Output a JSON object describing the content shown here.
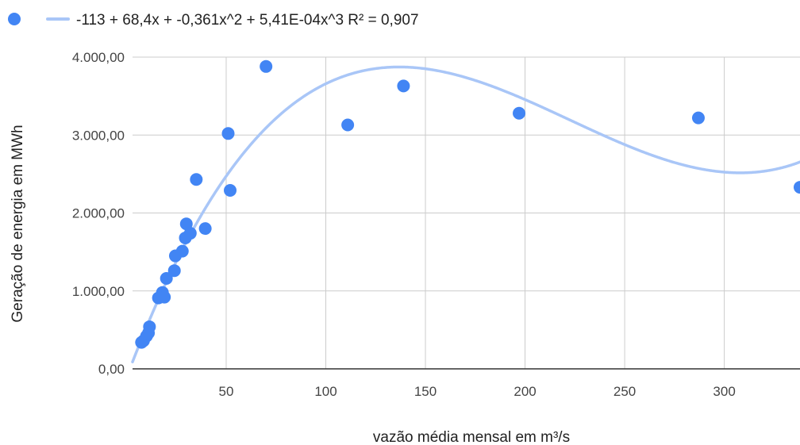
{
  "chart_data": {
    "type": "scatter",
    "title": "",
    "xlabel": "vazão média mensal em m³/s",
    "ylabel": "Geração de energia em MWh",
    "xlim": [
      3,
      338
    ],
    "ylim": [
      0,
      4000
    ],
    "x_ticks": [
      50,
      100,
      150,
      200,
      250,
      300
    ],
    "y_ticks": [
      0,
      1000,
      2000,
      3000,
      4000
    ],
    "x_tick_labels": [
      "50",
      "100",
      "150",
      "200",
      "250",
      "300"
    ],
    "y_tick_labels": [
      "0,00",
      "1.000,00",
      "2.000,00",
      "3.000,00",
      "4.000,00"
    ],
    "grid": true,
    "legend_position": "top-left",
    "series": [
      {
        "name": "",
        "points": [
          [
            7.5,
            340
          ],
          [
            8.5,
            360
          ],
          [
            10,
            420
          ],
          [
            11,
            460
          ],
          [
            11.5,
            540
          ],
          [
            16,
            910
          ],
          [
            18,
            980
          ],
          [
            19,
            920
          ],
          [
            20,
            1160
          ],
          [
            24,
            1260
          ],
          [
            24.5,
            1450
          ],
          [
            28,
            1510
          ],
          [
            29.5,
            1680
          ],
          [
            30,
            1860
          ],
          [
            32,
            1740
          ],
          [
            35,
            2430
          ],
          [
            39.5,
            1800
          ],
          [
            51,
            3020
          ],
          [
            52,
            2290
          ],
          [
            70,
            3880
          ],
          [
            111,
            3130
          ],
          [
            139,
            3630
          ],
          [
            197,
            3280
          ],
          [
            287,
            3220
          ],
          [
            338,
            2330
          ]
        ]
      }
    ],
    "trendline": {
      "label": "-113 + 68,4x + -0,361x^2 + 5,41E-04x^3 R² = 0,907",
      "coefficients": [
        -113,
        68.4,
        -0.361,
        0.000541
      ]
    },
    "colors": {
      "points": "#4285f4",
      "trendline": "#a9c6f7",
      "grid": "#cccccc",
      "axis": "#333333"
    }
  }
}
